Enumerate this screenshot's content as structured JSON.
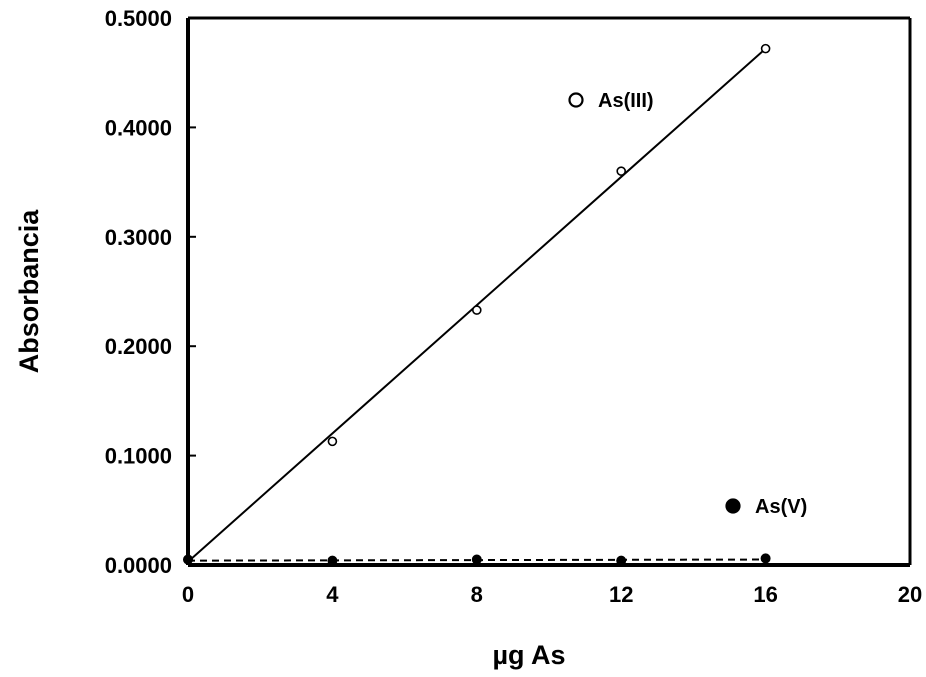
{
  "chart_data": {
    "type": "scatter",
    "xlabel": "µg As",
    "ylabel": "Absorbancia",
    "xlim": [
      0,
      20
    ],
    "ylim": [
      0,
      0.5
    ],
    "x_ticks": [
      "0",
      "4",
      "8",
      "12",
      "16",
      "20"
    ],
    "y_ticks": [
      "0.0000",
      "0.1000",
      "0.2000",
      "0.3000",
      "0.4000",
      "0.5000"
    ],
    "grid": false,
    "series": [
      {
        "name": "As(III)",
        "marker": "open-circle",
        "x": [
          0,
          4,
          8,
          12,
          16
        ],
        "y": [
          0.005,
          0.113,
          0.233,
          0.36,
          0.472
        ],
        "fit_line": {
          "style": "solid",
          "x": [
            0,
            16
          ],
          "y": [
            0.003,
            0.472
          ]
        }
      },
      {
        "name": "As(V)",
        "marker": "filled-circle",
        "x": [
          0,
          4,
          8,
          12,
          16
        ],
        "y": [
          0.005,
          0.004,
          0.005,
          0.004,
          0.006
        ],
        "fit_line": {
          "style": "dashed",
          "x": [
            0,
            16
          ],
          "y": [
            0.004,
            0.005
          ]
        }
      }
    ]
  }
}
